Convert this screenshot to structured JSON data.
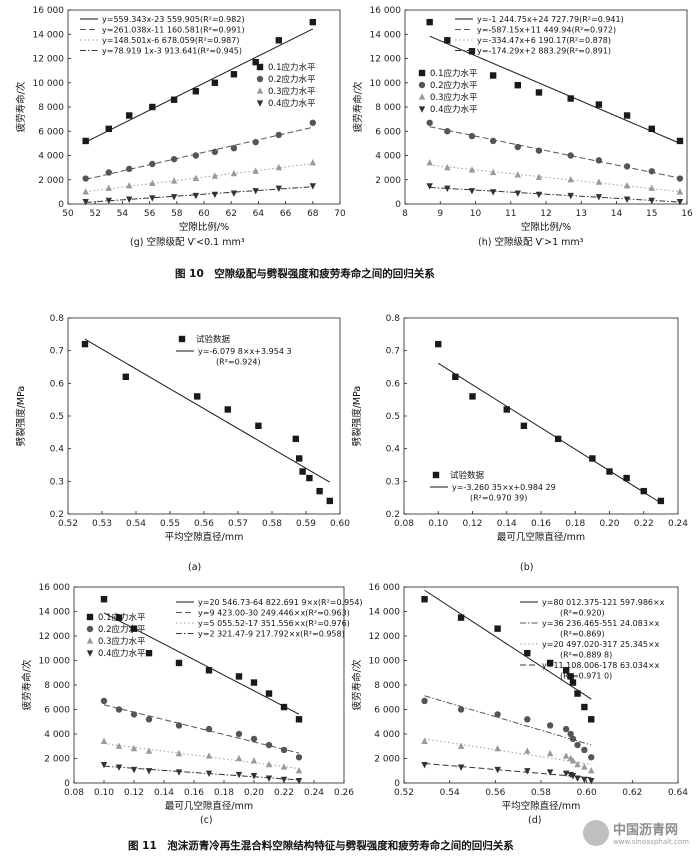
{
  "captions": {
    "g": "(g) 空隙级配 V′<0.1 mm³",
    "h": "(h) 空隙级配 V′>1 mm³",
    "fig10": "图 10　空隙级配与劈裂强度和疲劳寿命之间的回归关系",
    "a": "(a)",
    "b": "(b)",
    "c": "(c)",
    "d": "(d)",
    "fig11": "图 11　泡沫沥青冷再生混合料空隙结构特征与劈裂强度和疲劳寿命之间的回归关系"
  },
  "watermark": {
    "name": "中国沥青网",
    "url": "www.sinoasphalt.com"
  },
  "chart_data": [
    {
      "id": "g",
      "type": "scatter",
      "xlabel": "空隙比例/%",
      "ylabel": "疲劳寿命/次",
      "xlim": [
        50,
        70
      ],
      "ylim": [
        0,
        16000
      ],
      "xticks": [
        50,
        52,
        54,
        56,
        58,
        60,
        62,
        64,
        66,
        68,
        70
      ],
      "yticks": [
        0,
        2000,
        4000,
        6000,
        8000,
        10000,
        12000,
        14000,
        16000
      ],
      "ytick_labels": [
        "0",
        "2 000",
        "4 000",
        "6 000",
        "8 000",
        "10 000",
        "12 000",
        "14 000",
        "16 000"
      ],
      "legend_position": "middle-right",
      "series": [
        {
          "name": "0.1应力水平",
          "marker": "square",
          "line": "solid",
          "equation": "y=559.343x-23 559.905(R²=0.982)",
          "x": [
            51.3,
            53,
            54.5,
            56.2,
            57.8,
            59.4,
            60.8,
            62.2,
            63.8,
            65.5,
            68
          ],
          "y": [
            5200,
            6200,
            7300,
            8000,
            8600,
            9300,
            10000,
            10700,
            11700,
            13500,
            15000
          ]
        },
        {
          "name": "0.2应力水平",
          "marker": "circle",
          "line": "dash",
          "equation": "y=261.038x-11 160.581(R²=0.991)",
          "x": [
            51.3,
            53,
            54.5,
            56.2,
            57.8,
            59.4,
            60.8,
            62.2,
            63.8,
            65.5,
            68
          ],
          "y": [
            2100,
            2600,
            2900,
            3300,
            3700,
            4000,
            4300,
            4600,
            5100,
            5700,
            6700
          ]
        },
        {
          "name": "0.3应力水平",
          "marker": "triangle-up",
          "line": "dot",
          "equation": "y=148.501x-6 678.059(R²=0.987)",
          "x": [
            51.3,
            53,
            54.5,
            56.2,
            57.8,
            59.4,
            60.8,
            62.2,
            63.8,
            65.5,
            68
          ],
          "y": [
            1000,
            1300,
            1500,
            1700,
            1900,
            2100,
            2300,
            2500,
            2700,
            3000,
            3400
          ]
        },
        {
          "name": "0.4应力水平",
          "marker": "triangle-down",
          "line": "dashdot",
          "equation": "y=78.919 1x-3 913.641(R²=0.945)",
          "x": [
            51.3,
            53,
            54.5,
            56.2,
            57.8,
            59.4,
            60.8,
            62.2,
            63.8,
            65.5,
            68
          ],
          "y": [
            200,
            300,
            400,
            500,
            600,
            700,
            800,
            900,
            1100,
            1300,
            1500
          ]
        }
      ]
    },
    {
      "id": "h",
      "type": "scatter",
      "xlabel": "空隙比例/%",
      "ylabel": "疲劳寿命/次",
      "xlim": [
        8,
        16
      ],
      "ylim": [
        0,
        16000
      ],
      "xticks": [
        8,
        9,
        10,
        11,
        12,
        13,
        14,
        15,
        16
      ],
      "yticks": [
        0,
        2000,
        4000,
        6000,
        8000,
        10000,
        12000,
        14000,
        16000
      ],
      "ytick_labels": [
        "0",
        "2 000",
        "4 000",
        "6 000",
        "8 000",
        "10 000",
        "12 000",
        "14 000",
        "16 000"
      ],
      "legend_position": "middle-left",
      "series": [
        {
          "name": "0.1应力水平",
          "marker": "square",
          "line": "solid",
          "equation": "y=-1 244.75x+24 727.79(R²=0.941)",
          "x": [
            8.7,
            9.2,
            9.9,
            10.5,
            11.2,
            11.8,
            12.7,
            13.5,
            14.3,
            15.0,
            15.8
          ],
          "y": [
            15000,
            13500,
            12600,
            10600,
            9800,
            9200,
            8700,
            8200,
            7300,
            6200,
            5200
          ]
        },
        {
          "name": "0.2应力水平",
          "marker": "circle",
          "line": "dash",
          "equation": "y=-587.15x+11 449.94(R²=0.972)",
          "x": [
            8.7,
            9.2,
            9.9,
            10.5,
            11.2,
            11.8,
            12.7,
            13.5,
            14.3,
            15.0,
            15.8
          ],
          "y": [
            6700,
            6000,
            5600,
            5200,
            4700,
            4400,
            4000,
            3600,
            3100,
            2700,
            2100
          ]
        },
        {
          "name": "0.3应力水平",
          "marker": "triangle-up",
          "line": "dot",
          "equation": "y=-334.47x+6 190.17(R²=0.878)",
          "x": [
            8.7,
            9.2,
            9.9,
            10.5,
            11.2,
            11.8,
            12.7,
            13.5,
            14.3,
            15.0,
            15.8
          ],
          "y": [
            3400,
            3000,
            2800,
            2600,
            2400,
            2200,
            2000,
            1800,
            1500,
            1300,
            1000
          ]
        },
        {
          "name": "0.4应力水平",
          "marker": "triangle-down",
          "line": "dashdot",
          "equation": "y=-174.29x+2 883.29(R²=0.891)",
          "x": [
            8.7,
            9.2,
            9.9,
            10.5,
            11.2,
            11.8,
            12.7,
            13.5,
            14.3,
            15.0,
            15.8
          ],
          "y": [
            1500,
            1300,
            1100,
            1000,
            900,
            800,
            700,
            600,
            400,
            300,
            200
          ]
        }
      ]
    },
    {
      "id": "a",
      "type": "scatter",
      "xlabel": "平均空隙直径/mm",
      "ylabel": "劈裂强度/MPa",
      "xlim": [
        0.52,
        0.6
      ],
      "ylim": [
        0.2,
        0.8
      ],
      "xticks": [
        0.52,
        0.53,
        0.54,
        0.55,
        0.56,
        0.57,
        0.58,
        0.59,
        0.6
      ],
      "yticks": [
        0.2,
        0.3,
        0.4,
        0.5,
        0.6,
        0.7,
        0.8
      ],
      "legend_position": "top-center",
      "series": [
        {
          "name": "试验数据",
          "marker": "square",
          "line": "solid",
          "equation": "y=-6.079 8×x+3.954 3",
          "r2": "(R²=0.924)",
          "x": [
            0.525,
            0.537,
            0.558,
            0.567,
            0.576,
            0.587,
            0.588,
            0.589,
            0.591,
            0.594,
            0.597
          ],
          "y": [
            0.72,
            0.62,
            0.56,
            0.52,
            0.47,
            0.43,
            0.37,
            0.33,
            0.31,
            0.27,
            0.24
          ]
        }
      ]
    },
    {
      "id": "b",
      "type": "scatter",
      "xlabel": "最可几空隙直径/mm",
      "ylabel": "劈裂强度/MPa",
      "xlim": [
        0.08,
        0.24
      ],
      "ylim": [
        0.2,
        0.8
      ],
      "xticks": [
        0.08,
        0.1,
        0.12,
        0.14,
        0.16,
        0.18,
        0.2,
        0.22,
        0.24
      ],
      "yticks": [
        0.2,
        0.3,
        0.4,
        0.5,
        0.6,
        0.7,
        0.8
      ],
      "legend_position": "bottom-center",
      "series": [
        {
          "name": "试验数据",
          "marker": "square",
          "line": "solid",
          "equation": "y=-3.260 35×x+0.984 29",
          "r2": "(R²=0.970 39)",
          "x": [
            0.1,
            0.11,
            0.12,
            0.14,
            0.15,
            0.17,
            0.19,
            0.2,
            0.21,
            0.22,
            0.23
          ],
          "y": [
            0.72,
            0.62,
            0.56,
            0.52,
            0.47,
            0.43,
            0.37,
            0.33,
            0.31,
            0.27,
            0.24
          ]
        }
      ]
    },
    {
      "id": "c",
      "type": "scatter",
      "xlabel": "最可几空隙直径/mm",
      "ylabel": "疲劳寿命/次",
      "xlim": [
        0.08,
        0.26
      ],
      "ylim": [
        0,
        16000
      ],
      "xticks": [
        0.08,
        0.1,
        0.12,
        0.14,
        0.16,
        0.18,
        0.2,
        0.22,
        0.24,
        0.26
      ],
      "yticks": [
        0,
        2000,
        4000,
        6000,
        8000,
        10000,
        12000,
        14000,
        16000
      ],
      "ytick_labels": [
        "0",
        "2 000",
        "4 000",
        "6 000",
        "8 000",
        "10 000",
        "12 000",
        "14 000",
        "16 000"
      ],
      "legend_position": "middle-left",
      "series": [
        {
          "name": "0.1应力水平",
          "marker": "square",
          "line": "solid",
          "equation": "y=20 546.73-64 822.691 9×x(R²=0.954)",
          "x": [
            0.1,
            0.11,
            0.12,
            0.13,
            0.15,
            0.17,
            0.19,
            0.2,
            0.21,
            0.22,
            0.23
          ],
          "y": [
            15000,
            13500,
            12600,
            10600,
            9800,
            9200,
            8700,
            8200,
            7300,
            6200,
            5200
          ]
        },
        {
          "name": "0.2应力水平",
          "marker": "circle",
          "line": "dash",
          "equation": "y=9 423.00-30 249.446×x(R²=0.963)",
          "x": [
            0.1,
            0.11,
            0.12,
            0.13,
            0.15,
            0.17,
            0.19,
            0.2,
            0.21,
            0.22,
            0.23
          ],
          "y": [
            6700,
            6000,
            5600,
            5200,
            4700,
            4400,
            4000,
            3600,
            3100,
            2700,
            2100
          ]
        },
        {
          "name": "0.3应力水平",
          "marker": "triangle-up",
          "line": "dot",
          "equation": "y=5 055.52-17 351.556×x(R²=0.976)",
          "x": [
            0.1,
            0.11,
            0.12,
            0.13,
            0.15,
            0.17,
            0.19,
            0.2,
            0.21,
            0.22,
            0.23
          ],
          "y": [
            3400,
            3000,
            2800,
            2600,
            2400,
            2200,
            2000,
            1800,
            1500,
            1300,
            1000
          ]
        },
        {
          "name": "0.4应力水平",
          "marker": "triangle-down",
          "line": "dashdot",
          "equation": "y=2 321.47-9 217.792×x(R²=0.958)",
          "x": [
            0.1,
            0.11,
            0.12,
            0.13,
            0.15,
            0.17,
            0.19,
            0.2,
            0.21,
            0.22,
            0.23
          ],
          "y": [
            1500,
            1300,
            1100,
            1000,
            900,
            800,
            700,
            600,
            400,
            300,
            200
          ]
        }
      ]
    },
    {
      "id": "d",
      "type": "scatter",
      "xlabel": "平均空隙直径/mm",
      "ylabel": "疲劳寿命/次",
      "xlim": [
        0.52,
        0.64
      ],
      "ylim": [
        0,
        16000
      ],
      "xticks": [
        0.52,
        0.54,
        0.56,
        0.58,
        0.6,
        0.62,
        0.64
      ],
      "yticks": [
        0,
        2000,
        4000,
        6000,
        8000,
        10000,
        12000,
        14000,
        16000
      ],
      "ytick_labels": [
        "0",
        "2 000",
        "4 000",
        "6 000",
        "8 000",
        "10 000",
        "12 000",
        "14 000",
        "16 000"
      ],
      "legend_position": "top-right",
      "series": [
        {
          "name": "0.1应力水平",
          "marker": "square",
          "line": "solid",
          "equation": "y=80 012.375-121 597.986×x",
          "r2": "(R²=0.920)",
          "x": [
            0.529,
            0.545,
            0.561,
            0.574,
            0.584,
            0.591,
            0.593,
            0.594,
            0.596,
            0.599,
            0.602
          ],
          "y": [
            15000,
            13500,
            12600,
            10600,
            9800,
            9200,
            8700,
            8200,
            7300,
            6200,
            5200
          ]
        },
        {
          "name": "0.2应力水平",
          "marker": "circle",
          "line": "dashdot",
          "equation": "y=36 236.465-551 24.083×x",
          "r2": "(R²=0.869)",
          "x": [
            0.529,
            0.545,
            0.561,
            0.574,
            0.584,
            0.591,
            0.593,
            0.594,
            0.596,
            0.599,
            0.602
          ],
          "y": [
            6700,
            6000,
            5600,
            5200,
            4700,
            4400,
            4000,
            3600,
            3100,
            2700,
            2100
          ]
        },
        {
          "name": "0.3应力水平",
          "marker": "triangle-up",
          "line": "dot",
          "equation": "y=20 497.020-317 25.345×x",
          "r2": "(R²=0.889 8)",
          "x": [
            0.529,
            0.545,
            0.561,
            0.574,
            0.584,
            0.591,
            0.593,
            0.594,
            0.596,
            0.599,
            0.602
          ],
          "y": [
            3400,
            3000,
            2800,
            2600,
            2400,
            2200,
            2000,
            1800,
            1500,
            1300,
            1000
          ]
        },
        {
          "name": "0.4应力水平",
          "marker": "triangle-down",
          "line": "dash",
          "equation": "y=11 108.006-178 63.034×x",
          "r2": "(R²=0.971 0)",
          "x": [
            0.529,
            0.545,
            0.561,
            0.574,
            0.584,
            0.591,
            0.593,
            0.594,
            0.596,
            0.599,
            0.602
          ],
          "y": [
            1500,
            1300,
            1100,
            1000,
            900,
            800,
            700,
            600,
            400,
            300,
            200
          ]
        }
      ]
    }
  ]
}
